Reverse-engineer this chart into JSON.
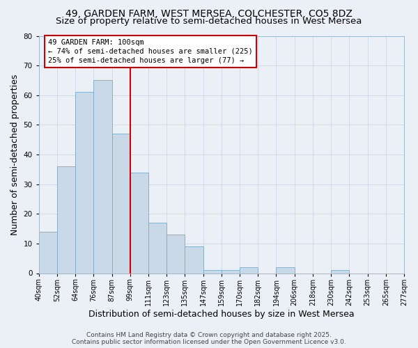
{
  "title": "49, GARDEN FARM, WEST MERSEA, COLCHESTER, CO5 8DZ",
  "subtitle": "Size of property relative to semi-detached houses in West Mersea",
  "xlabel": "Distribution of semi-detached houses by size in West Mersea",
  "ylabel": "Number of semi-detached properties",
  "bin_labels": [
    "40sqm",
    "52sqm",
    "64sqm",
    "76sqm",
    "87sqm",
    "99sqm",
    "111sqm",
    "123sqm",
    "135sqm",
    "147sqm",
    "159sqm",
    "170sqm",
    "182sqm",
    "194sqm",
    "206sqm",
    "218sqm",
    "230sqm",
    "242sqm",
    "253sqm",
    "265sqm",
    "277sqm"
  ],
  "n_bins": 20,
  "counts": [
    14,
    36,
    61,
    65,
    47,
    34,
    17,
    13,
    9,
    1,
    1,
    2,
    0,
    2,
    0,
    0,
    1,
    0,
    0,
    0
  ],
  "bar_facecolor": "#c9d9e8",
  "bar_edgecolor": "#7aaac8",
  "property_bin_index": 5,
  "property_line_color": "#cc0000",
  "annotation_line1": "49 GARDEN FARM: 100sqm",
  "annotation_line2": "← 74% of semi-detached houses are smaller (225)",
  "annotation_line3": "25% of semi-detached houses are larger (77) →",
  "annotation_box_edgecolor": "#cc0000",
  "annotation_box_facecolor": "#ffffff",
  "grid_color": "#c8d8e8",
  "background_color": "#eaf0f6",
  "ylim": [
    0,
    80
  ],
  "yticks": [
    0,
    10,
    20,
    30,
    40,
    50,
    60,
    70,
    80
  ],
  "footer_text": "Contains HM Land Registry data © Crown copyright and database right 2025.\nContains public sector information licensed under the Open Government Licence v3.0.",
  "title_fontsize": 10,
  "subtitle_fontsize": 9.5,
  "axis_label_fontsize": 9,
  "tick_fontsize": 7,
  "annotation_fontsize": 7.5,
  "footer_fontsize": 6.5
}
